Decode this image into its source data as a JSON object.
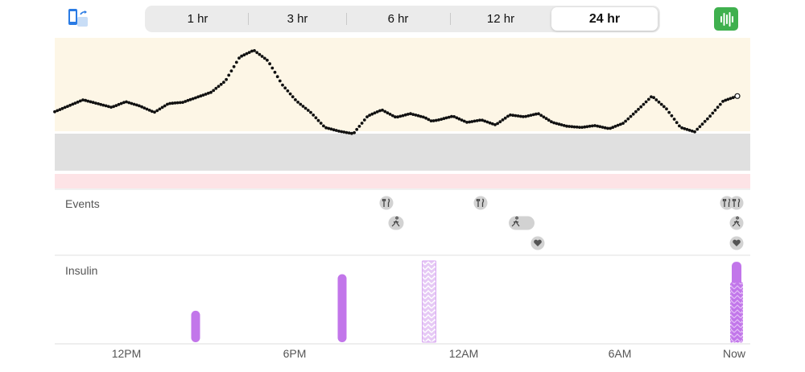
{
  "range_tabs": {
    "items": [
      {
        "label": "1 hr"
      },
      {
        "label": "3 hr"
      },
      {
        "label": "6 hr"
      },
      {
        "label": "12 hr"
      },
      {
        "label": "24 hr"
      }
    ],
    "selected_label": "24 hr"
  },
  "toolbar": {
    "left_icon": "phone-rotate-icon",
    "right_icon": "waveform-bars-icon",
    "right_icon_color": "#3fb04e"
  },
  "colors": {
    "high_band": "#fdf6e6",
    "target_band": "#e0e0e0",
    "low_band": "#fde3e6",
    "glucose_dot": "#111111",
    "insulin": "#c276ea",
    "badge": "#d2d2d2"
  },
  "events": {
    "label": "Events",
    "items": [
      {
        "type": "meal",
        "icon": "fork-knife-icon",
        "time": "9:30PM"
      },
      {
        "type": "exercise",
        "icon": "running-icon",
        "time": "9:45PM"
      },
      {
        "type": "meal",
        "icon": "fork-knife-icon",
        "time": "1:00AM"
      },
      {
        "type": "exercise",
        "icon": "running-icon",
        "time": "2:30AM"
      },
      {
        "type": "heart",
        "icon": "heart-icon",
        "time": "3:10AM"
      },
      {
        "type": "meal",
        "icon": "fork-knife-icon",
        "time": "Now"
      },
      {
        "type": "meal",
        "icon": "fork-knife-icon",
        "time": "Now"
      },
      {
        "type": "exercise",
        "icon": "running-icon",
        "time": "Now"
      },
      {
        "type": "heart",
        "icon": "heart-icon",
        "time": "Now"
      }
    ]
  },
  "insulin": {
    "label": "Insulin",
    "doses": [
      {
        "time": "2:30PM",
        "level": 0.38,
        "style": "solid"
      },
      {
        "time": "7:45PM",
        "level": 0.82,
        "style": "solid"
      },
      {
        "time": "11:00PM",
        "level": 0.98,
        "style": "extended"
      },
      {
        "time": "Now",
        "level": 0.97,
        "style": "solid"
      },
      {
        "time": "Now",
        "level": 0.72,
        "style": "extended"
      }
    ]
  },
  "time_axis": {
    "labels": [
      "12PM",
      "6PM",
      "12AM",
      "6AM",
      "Now"
    ]
  },
  "chart_data": {
    "type": "scatter",
    "title": "",
    "xlabel": "",
    "ylabel": "",
    "x_unit": "hours",
    "xlim": [
      -24,
      0
    ],
    "x_tick_labels": [
      "12PM",
      "6PM",
      "12AM",
      "6AM",
      "Now"
    ],
    "y_relative_range": [
      0,
      1
    ],
    "target_band": [
      0.32,
      0.58
    ],
    "series": [
      {
        "x": [
          -24.0,
          -23.0,
          -22.0,
          -21.5,
          -21.0,
          -20.5,
          -20.0,
          -19.5,
          -19.0,
          -18.5,
          -18.0,
          -17.5,
          -17.0,
          -16.5,
          -16.0,
          -15.5,
          -15.0,
          -14.5,
          -14.0,
          -13.5,
          -13.0,
          -12.5,
          -12.0,
          -11.5,
          -11.0,
          -10.75,
          -10.5,
          -10.0,
          -9.5,
          -9.0,
          -8.5,
          -8.0,
          -7.5,
          -7.0,
          -6.5,
          -6.0,
          -5.5,
          -5.0,
          -4.5,
          -4.0,
          -3.5,
          -3.0,
          -2.5,
          -2.0,
          -1.5,
          -1.0,
          -0.5,
          0.0
        ],
        "y": [
          0.495,
          0.59,
          0.53,
          0.575,
          0.54,
          0.49,
          0.56,
          0.57,
          0.61,
          0.65,
          0.74,
          0.93,
          0.985,
          0.9,
          0.71,
          0.58,
          0.49,
          0.37,
          0.34,
          0.32,
          0.46,
          0.51,
          0.45,
          0.48,
          0.45,
          0.42,
          0.43,
          0.46,
          0.41,
          0.43,
          0.39,
          0.47,
          0.455,
          0.48,
          0.41,
          0.38,
          0.37,
          0.385,
          0.36,
          0.405,
          0.51,
          0.62,
          0.52,
          0.37,
          0.335,
          0.45,
          0.58,
          0.62
        ]
      }
    ]
  }
}
